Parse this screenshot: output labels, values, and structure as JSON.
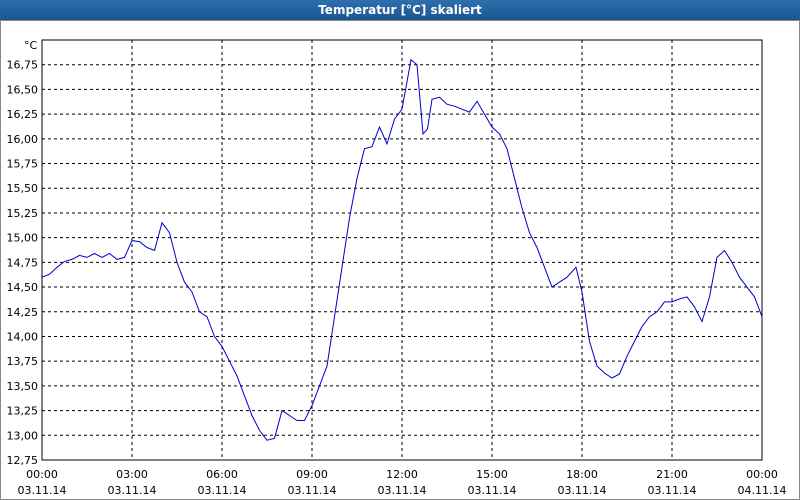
{
  "chart_data": {
    "type": "line",
    "title": "Temperatur [°C] skaliert",
    "y_label": "°C",
    "series": [
      {
        "color": "#0000cc",
        "x": [
          0,
          0.25,
          0.5,
          0.75,
          1,
          1.25,
          1.5,
          1.75,
          2,
          2.25,
          2.5,
          2.75,
          3,
          3.25,
          3.5,
          3.75,
          4,
          4.25,
          4.5,
          4.75,
          5,
          5.25,
          5.5,
          5.75,
          6,
          6.25,
          6.5,
          6.75,
          7,
          7.25,
          7.5,
          7.75,
          8,
          8.25,
          8.5,
          8.75,
          9,
          9.25,
          9.5,
          9.75,
          10,
          10.25,
          10.5,
          10.75,
          11,
          11.25,
          11.5,
          11.75,
          12,
          12.15,
          12.3,
          12.5,
          12.7,
          12.85,
          13,
          13.25,
          13.5,
          13.75,
          14,
          14.25,
          14.5,
          14.75,
          15,
          15.25,
          15.5,
          15.75,
          16,
          16.25,
          16.5,
          16.75,
          17,
          17.25,
          17.5,
          17.8,
          18,
          18.25,
          18.5,
          18.75,
          19,
          19.25,
          19.5,
          19.75,
          20,
          20.25,
          20.5,
          20.75,
          21,
          21.25,
          21.5,
          21.75,
          22,
          22.25,
          22.5,
          22.75,
          23,
          23.25,
          23.5,
          23.75,
          24
        ],
        "values": [
          14.6,
          14.63,
          14.7,
          14.76,
          14.78,
          14.82,
          14.8,
          14.84,
          14.8,
          14.84,
          14.78,
          14.8,
          14.97,
          14.96,
          14.9,
          14.87,
          15.15,
          15.05,
          14.75,
          14.55,
          14.45,
          14.25,
          14.2,
          14.0,
          13.9,
          13.75,
          13.6,
          13.4,
          13.2,
          13.05,
          12.95,
          12.97,
          13.25,
          13.2,
          13.15,
          13.15,
          13.3,
          13.5,
          13.7,
          14.2,
          14.7,
          15.2,
          15.6,
          15.9,
          15.92,
          16.12,
          15.95,
          16.2,
          16.3,
          16.55,
          16.8,
          16.75,
          16.05,
          16.1,
          16.4,
          16.42,
          16.35,
          16.33,
          16.3,
          16.27,
          16.38,
          16.25,
          16.12,
          16.05,
          15.9,
          15.6,
          15.3,
          15.05,
          14.9,
          14.7,
          14.5,
          14.55,
          14.6,
          14.7,
          14.45,
          13.95,
          13.7,
          13.63,
          13.58,
          13.62,
          13.8,
          13.95,
          14.1,
          14.2,
          14.25,
          14.35,
          14.35,
          14.38,
          14.4,
          14.3,
          14.15,
          14.4,
          14.8,
          14.87,
          14.75,
          14.6,
          14.5,
          14.4,
          14.2
        ]
      }
    ],
    "xlim": [
      0,
      24
    ],
    "xticks": [
      {
        "value": 0,
        "label": "00:00 03.11.14"
      },
      {
        "value": 3,
        "label": "03:00 03.11.14"
      },
      {
        "value": 6,
        "label": "06:00 03.11.14"
      },
      {
        "value": 9,
        "label": "09:00 03.11.14"
      },
      {
        "value": 12,
        "label": "12:00 03.11.14"
      },
      {
        "value": 15,
        "label": "15:00 03.11.14"
      },
      {
        "value": 18,
        "label": "18:00 03.11.14"
      },
      {
        "value": 21,
        "label": "21:00 03.11.14"
      },
      {
        "value": 24,
        "label": "00:00 04.11.14"
      }
    ],
    "ylim": [
      12.75,
      17.0
    ],
    "yticks": [
      {
        "value": 12.75,
        "label": "12,75"
      },
      {
        "value": 13,
        "label": "13,00"
      },
      {
        "value": 13.25,
        "label": "13,25"
      },
      {
        "value": 13.5,
        "label": "13,50"
      },
      {
        "value": 13.75,
        "label": "13,75"
      },
      {
        "value": 14,
        "label": "14,00"
      },
      {
        "value": 14.25,
        "label": "14,25"
      },
      {
        "value": 14.5,
        "label": "14,50"
      },
      {
        "value": 14.75,
        "label": "14,75"
      },
      {
        "value": 15,
        "label": "15,00"
      },
      {
        "value": 15.25,
        "label": "15,25"
      },
      {
        "value": 15.5,
        "label": "15,50"
      },
      {
        "value": 15.75,
        "label": "15,75"
      },
      {
        "value": 16,
        "label": "16,00"
      },
      {
        "value": 16.25,
        "label": "16,25"
      },
      {
        "value": 16.5,
        "label": "16,50"
      },
      {
        "value": 16.75,
        "label": "16,75"
      }
    ],
    "grid": true
  }
}
